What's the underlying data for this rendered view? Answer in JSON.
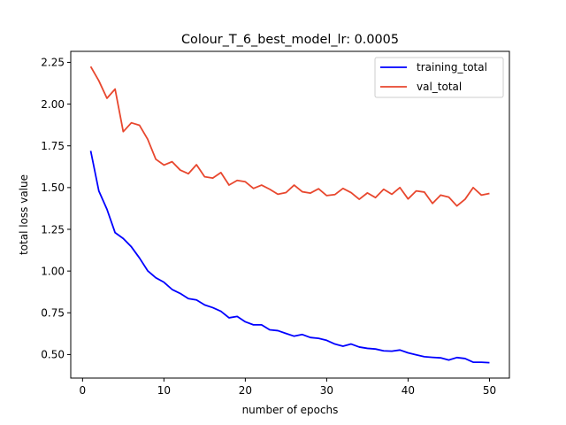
{
  "chart_data": {
    "type": "line",
    "title": "Colour_T_6_best_model_lr: 0.0005",
    "xlabel": "number of epochs",
    "ylabel": "total loss value",
    "xlim": [
      -1.45,
      52.45
    ],
    "ylim": [
      0.359,
      2.316
    ],
    "xticks": [
      0,
      10,
      20,
      30,
      40,
      50
    ],
    "yticks": [
      0.5,
      0.75,
      1.0,
      1.25,
      1.5,
      1.75,
      2.0,
      2.25
    ],
    "ytick_labels": [
      "0.50",
      "0.75",
      "1.00",
      "1.25",
      "1.50",
      "1.75",
      "2.00",
      "2.25"
    ],
    "grid": false,
    "legend_position": "upper right",
    "x": [
      1,
      2,
      3,
      4,
      5,
      6,
      7,
      8,
      9,
      10,
      11,
      12,
      13,
      14,
      15,
      16,
      17,
      18,
      19,
      20,
      21,
      22,
      23,
      24,
      25,
      26,
      27,
      28,
      29,
      30,
      31,
      32,
      33,
      34,
      35,
      36,
      37,
      38,
      39,
      40,
      41,
      42,
      43,
      44,
      45,
      46,
      47,
      48,
      49,
      50
    ],
    "series": [
      {
        "name": "training_total",
        "color": "#0000ff",
        "values": [
          1.72,
          1.48,
          1.37,
          1.23,
          1.195,
          1.145,
          1.078,
          1.002,
          0.96,
          0.933,
          0.89,
          0.866,
          0.835,
          0.827,
          0.797,
          0.781,
          0.759,
          0.72,
          0.728,
          0.696,
          0.678,
          0.678,
          0.648,
          0.643,
          0.626,
          0.61,
          0.62,
          0.602,
          0.597,
          0.585,
          0.563,
          0.55,
          0.563,
          0.545,
          0.537,
          0.533,
          0.522,
          0.52,
          0.527,
          0.51,
          0.498,
          0.487,
          0.483,
          0.48,
          0.467,
          0.482,
          0.476,
          0.454,
          0.454,
          0.451
        ]
      },
      {
        "name": "val_total",
        "color": "#e8472e",
        "values": [
          2.225,
          2.14,
          2.035,
          2.09,
          1.835,
          1.888,
          1.873,
          1.79,
          1.67,
          1.635,
          1.655,
          1.605,
          1.583,
          1.637,
          1.565,
          1.557,
          1.59,
          1.515,
          1.543,
          1.535,
          1.495,
          1.515,
          1.49,
          1.46,
          1.47,
          1.515,
          1.475,
          1.467,
          1.493,
          1.452,
          1.458,
          1.495,
          1.47,
          1.43,
          1.468,
          1.44,
          1.49,
          1.46,
          1.5,
          1.432,
          1.48,
          1.473,
          1.405,
          1.455,
          1.443,
          1.39,
          1.43,
          1.5,
          1.455,
          1.465
        ]
      }
    ]
  }
}
